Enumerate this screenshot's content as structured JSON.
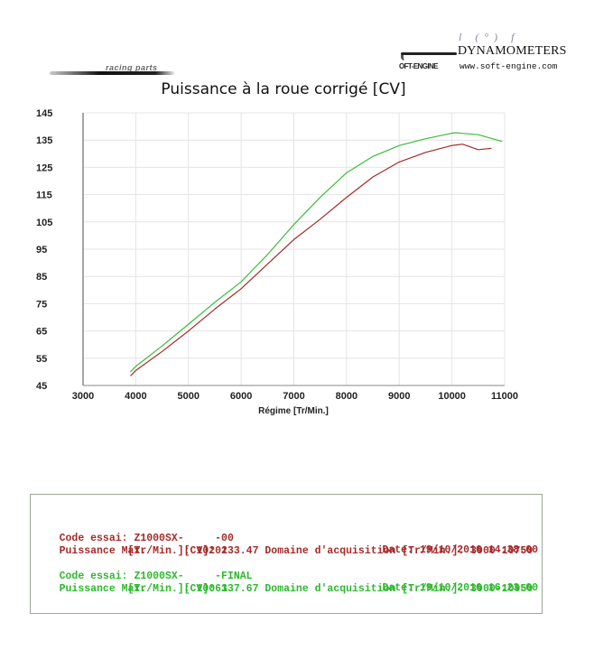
{
  "header": {
    "logo_left_text": "racing parts",
    "logo_right_script": "l  (°) f",
    "logo_right_brand": "DYNAMOMETERS",
    "logo_right_mark": "OFT-ENGINE",
    "logo_right_url": "www.soft-engine.com"
  },
  "chart_data": {
    "type": "line",
    "title": "Puissance à la roue corrigé [CV]",
    "xlabel": "Régime [Tr/Min.]",
    "ylabel": "",
    "xlim": [
      3000,
      11000
    ],
    "ylim": [
      45,
      145
    ],
    "x_ticks": [
      3000,
      4000,
      5000,
      6000,
      7000,
      8000,
      9000,
      10000,
      11000
    ],
    "y_ticks": [
      45,
      55,
      65,
      75,
      85,
      95,
      105,
      115,
      125,
      135,
      145
    ],
    "grid": true,
    "legend": "none (see info box)",
    "series": [
      {
        "name": "Z1000SX- -00",
        "color": "#a52a2a",
        "x": [
          3900,
          4000,
          4500,
          5000,
          5500,
          6000,
          6500,
          7000,
          7500,
          8000,
          8500,
          9000,
          9500,
          10000,
          10200,
          10500,
          10750
        ],
        "y": [
          48.5,
          50.5,
          57.5,
          65,
          73,
          80.5,
          89.5,
          98.5,
          106,
          114,
          121.5,
          127,
          130.5,
          133,
          133.5,
          131.5,
          132
        ]
      },
      {
        "name": "Z1000SX- -FINAL",
        "color": "#3cbb3c",
        "x": [
          3900,
          4000,
          4500,
          5000,
          5500,
          6000,
          6500,
          7000,
          7500,
          8000,
          8500,
          9000,
          9500,
          10000,
          10063,
          10500,
          10950
        ],
        "y": [
          50,
          52,
          59.5,
          67.5,
          75.5,
          83,
          93,
          104,
          114,
          123,
          129,
          133,
          135.5,
          137.5,
          137.7,
          137,
          134.5
        ]
      }
    ]
  },
  "info": {
    "run1": {
      "code_label": "Code essai:",
      "code_value": "Z1000SX-     -00",
      "date_label": "Date:",
      "date_value": "19/10/2016 14:38:00",
      "power_label": "Puissance Max.",
      "power_unit": "[CV]:",
      "power_value": "133.47",
      "range_label": "Domaine d'acquisition [Tr/Min.]:",
      "range_value": "3900-10750",
      "rpm_unit": "[Tr/Min.]:",
      "rpm_value": "10202"
    },
    "run2": {
      "code_label": "Code essai:",
      "code_value": "Z1000SX-     -FINAL",
      "date_label": "Date:",
      "date_value": "19/10/2016 16:23:00",
      "power_label": "Puissance Max.",
      "power_unit": "[CV]:",
      "power_value": "137.67",
      "range_label": "Domaine d'acquisition [Tr/Min.]:",
      "range_value": "3900-10950",
      "rpm_unit": "[Tr/Min.]:",
      "rpm_value": "10063"
    }
  }
}
